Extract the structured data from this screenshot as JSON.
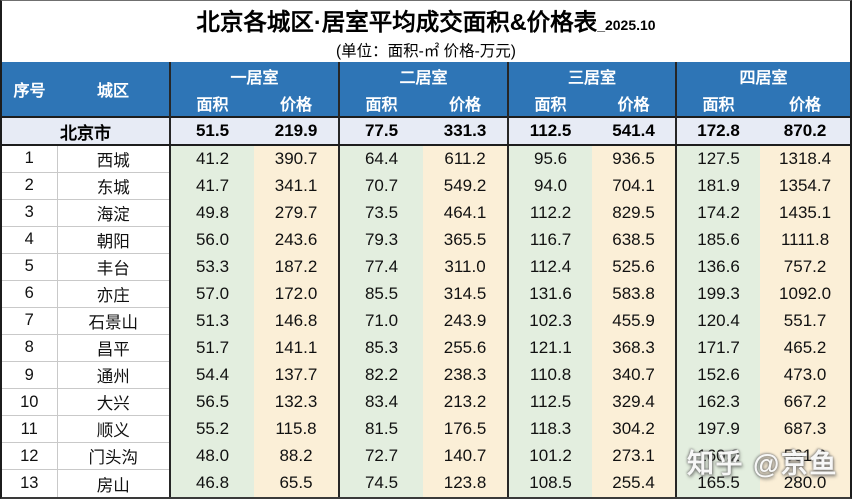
{
  "title": {
    "main": "北京各城区·居室平均成交面积&价格表",
    "date_suffix": "_2025.10",
    "subtitle": "(单位：面积-㎡ 价格-万元)"
  },
  "table": {
    "corner_headers": {
      "index": "序号",
      "district": "城区"
    },
    "group_headers": [
      "一居室",
      "二居室",
      "三居室",
      "四居室"
    ],
    "sub_headers": {
      "area": "面积",
      "price": "价格"
    },
    "summary_row": {
      "district": "北京市",
      "values": [
        "51.5",
        "219.9",
        "77.5",
        "331.3",
        "112.5",
        "541.4",
        "172.8",
        "870.2"
      ]
    },
    "rows": [
      {
        "index": "1",
        "district": "西城",
        "values": [
          "41.2",
          "390.7",
          "64.4",
          "611.2",
          "95.6",
          "936.5",
          "127.5",
          "1318.4"
        ]
      },
      {
        "index": "2",
        "district": "东城",
        "values": [
          "41.7",
          "341.1",
          "70.7",
          "549.2",
          "94.0",
          "704.1",
          "181.9",
          "1354.7"
        ]
      },
      {
        "index": "3",
        "district": "海淀",
        "values": [
          "49.8",
          "279.7",
          "73.5",
          "464.1",
          "112.2",
          "829.5",
          "174.2",
          "1435.1"
        ]
      },
      {
        "index": "4",
        "district": "朝阳",
        "values": [
          "56.0",
          "243.6",
          "79.3",
          "365.5",
          "116.7",
          "638.5",
          "185.6",
          "1111.8"
        ]
      },
      {
        "index": "5",
        "district": "丰台",
        "values": [
          "53.3",
          "187.2",
          "77.4",
          "311.0",
          "112.4",
          "525.6",
          "136.6",
          "757.2"
        ]
      },
      {
        "index": "6",
        "district": "亦庄",
        "values": [
          "57.0",
          "172.0",
          "85.5",
          "314.5",
          "131.6",
          "583.8",
          "199.3",
          "1092.0"
        ]
      },
      {
        "index": "7",
        "district": "石景山",
        "values": [
          "51.3",
          "146.8",
          "71.0",
          "243.9",
          "102.3",
          "455.9",
          "120.4",
          "551.7"
        ]
      },
      {
        "index": "8",
        "district": "昌平",
        "values": [
          "51.7",
          "141.1",
          "85.3",
          "255.6",
          "121.1",
          "368.3",
          "171.7",
          "465.2"
        ]
      },
      {
        "index": "9",
        "district": "通州",
        "values": [
          "54.4",
          "137.7",
          "82.2",
          "238.3",
          "110.8",
          "340.7",
          "152.6",
          "473.0"
        ]
      },
      {
        "index": "10",
        "district": "大兴",
        "values": [
          "56.5",
          "132.3",
          "83.4",
          "213.2",
          "112.5",
          "329.4",
          "162.3",
          "667.2"
        ]
      },
      {
        "index": "11",
        "district": "顺义",
        "values": [
          "55.2",
          "115.8",
          "81.5",
          "176.5",
          "118.3",
          "304.2",
          "197.9",
          "687.3"
        ]
      },
      {
        "index": "12",
        "district": "门头沟",
        "values": [
          "48.0",
          "88.2",
          "72.7",
          "140.7",
          "101.2",
          "273.1",
          "160.2",
          "561.0"
        ]
      },
      {
        "index": "13",
        "district": "房山",
        "values": [
          "46.8",
          "65.5",
          "74.5",
          "123.8",
          "108.5",
          "255.4",
          "165.5",
          "280.0"
        ]
      }
    ]
  },
  "watermark": "知乎 @京鱼",
  "colors": {
    "header_blue": "#2E75B6",
    "area_green": "#E3EEDF",
    "price_cream": "#FBEFD7",
    "summary_lavender": "#E7EBF5",
    "border_dark": "#262626",
    "grid_gray": "#C9C9C9"
  }
}
